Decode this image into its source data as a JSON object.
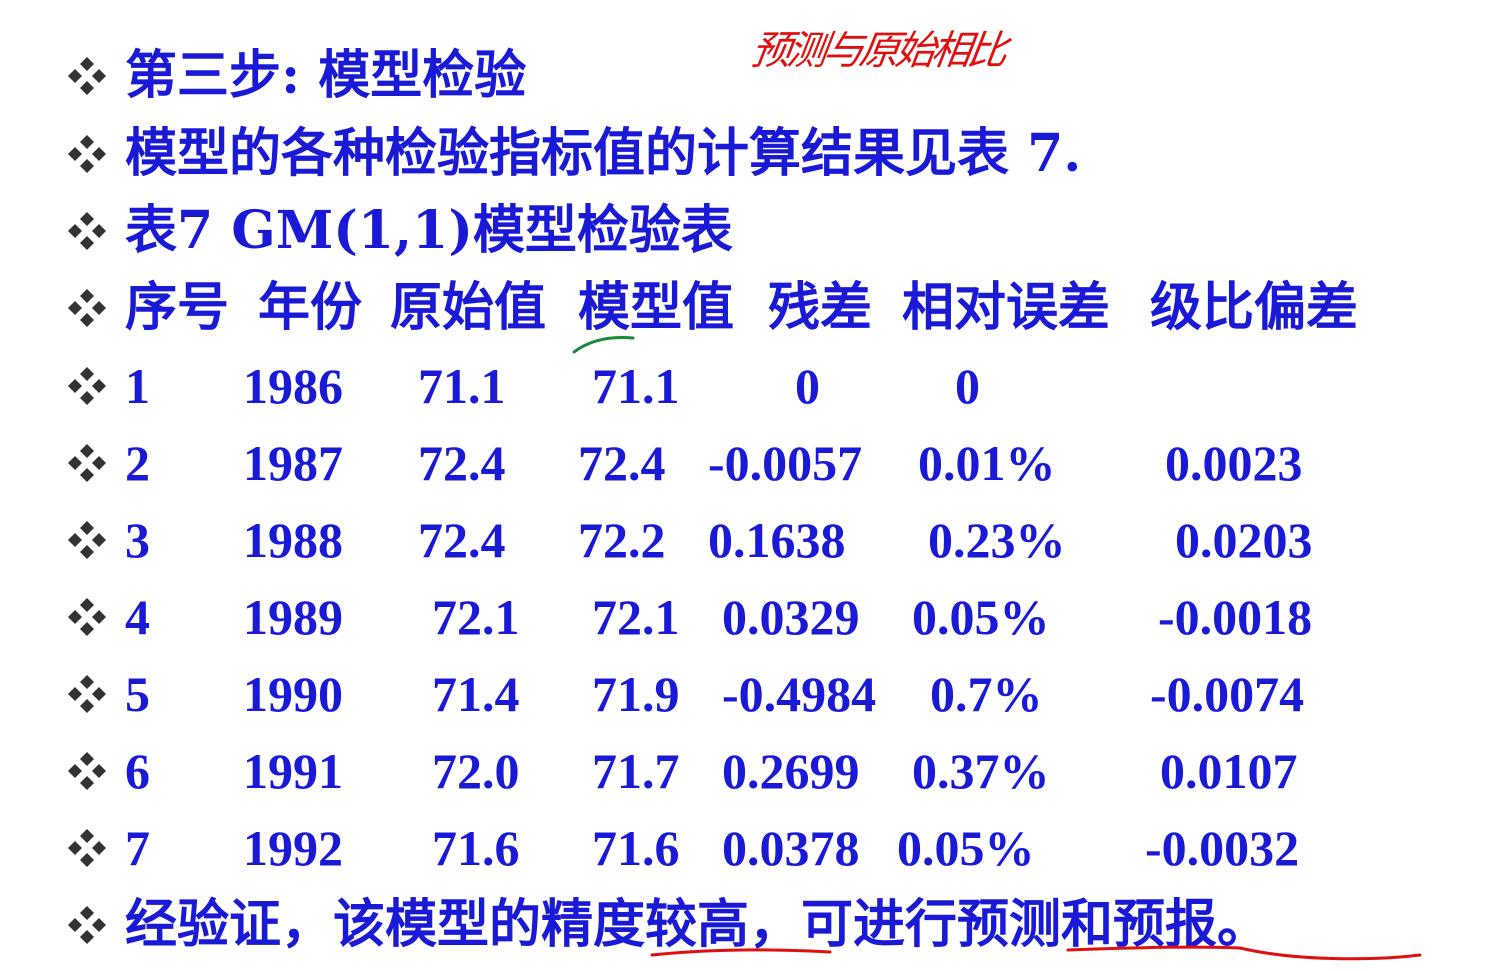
{
  "annotation": {
    "text": "预测与原始相比",
    "color": "#e01010"
  },
  "colors": {
    "text": "#1a1ad6",
    "bullet": "#333333"
  },
  "bullet_icon": "diamond-cluster-icon",
  "lines": [
    {
      "text": "第三步: 模型检验"
    },
    {
      "text": "模型的各种检验指标值的计算结果见表 7."
    },
    {
      "text": "表7 GM(1,1)模型检验表"
    }
  ],
  "table": {
    "headers": [
      "序号",
      "年份",
      "原始值",
      "模型值",
      "残差",
      "相对误差",
      "级比偏差"
    ],
    "rows": [
      [
        "1",
        "1986",
        "71.1",
        "71.1",
        "0",
        "0",
        ""
      ],
      [
        "2",
        "1987",
        "72.4",
        "72.4",
        "-0.0057",
        "0.01%",
        "0.0023"
      ],
      [
        "3",
        "1988",
        "72.4",
        "72.2",
        "0.1638",
        "0.23%",
        "0.0203"
      ],
      [
        "4",
        "1989",
        "72.1",
        "72.1",
        "0.0329",
        "0.05%",
        "-0.0018"
      ],
      [
        "5",
        "1990",
        "71.4",
        "71.9",
        "-0.4984",
        "0.7%",
        "-0.0074"
      ],
      [
        "6",
        "1991",
        "72.0",
        "71.7",
        "0.2699",
        "0.37%",
        "0.0107"
      ],
      [
        "7",
        "1992",
        "71.6",
        "71.6",
        "0.0378",
        "0.05%",
        "-0.0032"
      ]
    ]
  },
  "conclusion": {
    "text": "经验证，该模型的精度较高，可进行预测和预报。"
  }
}
